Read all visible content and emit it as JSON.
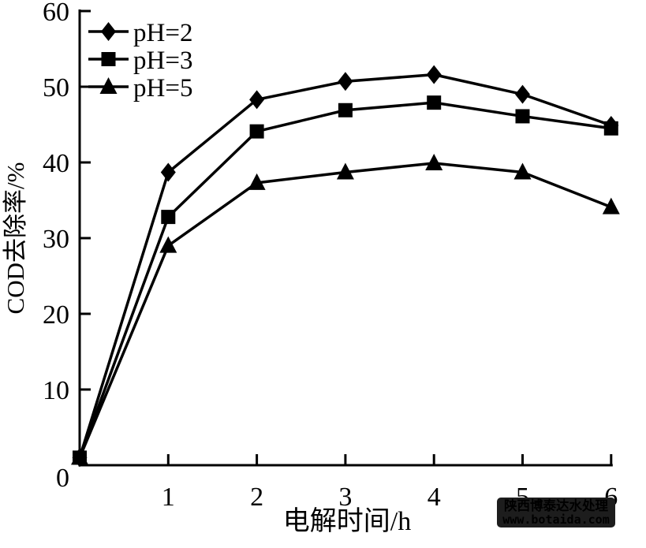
{
  "chart_data": {
    "type": "line",
    "x": [
      0,
      1,
      2,
      3,
      4,
      5,
      6
    ],
    "series": [
      {
        "name": "pH=2",
        "marker": "diamond",
        "values": [
          1,
          38.7,
          48.3,
          50.7,
          51.6,
          49.0,
          44.9
        ]
      },
      {
        "name": "pH=3",
        "marker": "square",
        "values": [
          1,
          32.8,
          44.1,
          46.9,
          47.9,
          46.1,
          44.5
        ]
      },
      {
        "name": "pH=5",
        "marker": "triangle",
        "values": [
          1,
          29.0,
          37.3,
          38.7,
          39.9,
          38.7,
          34.1
        ]
      }
    ],
    "title": "",
    "xlabel": "电解时间/h",
    "ylabel": "COD去除率/%",
    "xlim": [
      0,
      6
    ],
    "ylim": [
      0,
      60
    ],
    "x_ticks": [
      1,
      2,
      3,
      4,
      5,
      6
    ],
    "y_ticks": [
      0,
      10,
      20,
      30,
      40,
      50,
      60
    ],
    "grid": false,
    "legend_position": "top-left",
    "line_color": "#000000",
    "background_color": "#ffffff"
  },
  "watermark": {
    "line1": "陕西博泰达水处理",
    "line2": "www.botaida.com",
    "bg_color": "#1d1d1d",
    "line1_color": "#ffffff",
    "line2_color": "#2fc3cf"
  }
}
